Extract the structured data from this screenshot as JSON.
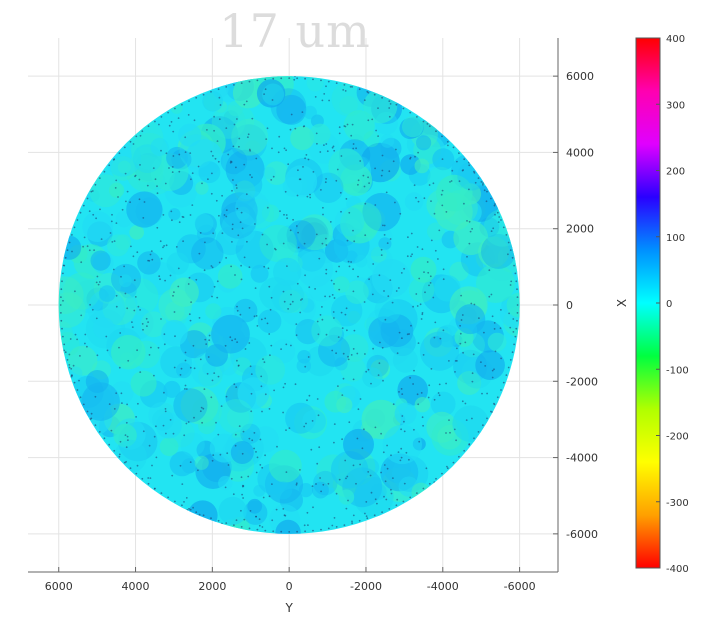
{
  "chart_data": {
    "type": "heatmap",
    "title": "17 um",
    "xlabel": "Y",
    "ylabel": "",
    "xlim": [
      6800,
      -7000
    ],
    "ylim": [
      -7000,
      7000
    ],
    "x_ticks": [
      6000,
      4000,
      2000,
      0,
      -2000,
      -4000,
      -6000
    ],
    "x_tick_labels": [
      "6000",
      "4000",
      "2000",
      "0",
      "-2000",
      "-4000",
      "-6000"
    ],
    "y_ticks": [
      6000,
      4000,
      2000,
      0,
      -2000,
      -4000,
      -6000
    ],
    "y_tick_labels": [
      "6000",
      "4000",
      "2000",
      "0",
      "-2000",
      "-4000",
      "-6000"
    ],
    "y_tick_side": "right",
    "grid": true,
    "region": {
      "shape": "circle",
      "center": [
        0,
        0
      ],
      "radius": 6000
    },
    "value_range_observed": [
      -100,
      120
    ],
    "dominant_value": 30,
    "colorbar": {
      "label": "X",
      "range": [
        -400,
        400
      ],
      "ticks": [
        400,
        300,
        200,
        100,
        0,
        -100,
        -200,
        -300,
        -400
      ],
      "tick_labels": [
        "400",
        "300",
        "200",
        "100",
        "0",
        "-100",
        "-200",
        "-300",
        "-400"
      ],
      "colors_top_to_bottom": [
        "#ff0000",
        "#ff00b0",
        "#e000ff",
        "#2a00ff",
        "#0090ff",
        "#00ffff",
        "#00ff40",
        "#b0ff00",
        "#ffff00",
        "#ffa000",
        "#ff0000"
      ]
    }
  }
}
